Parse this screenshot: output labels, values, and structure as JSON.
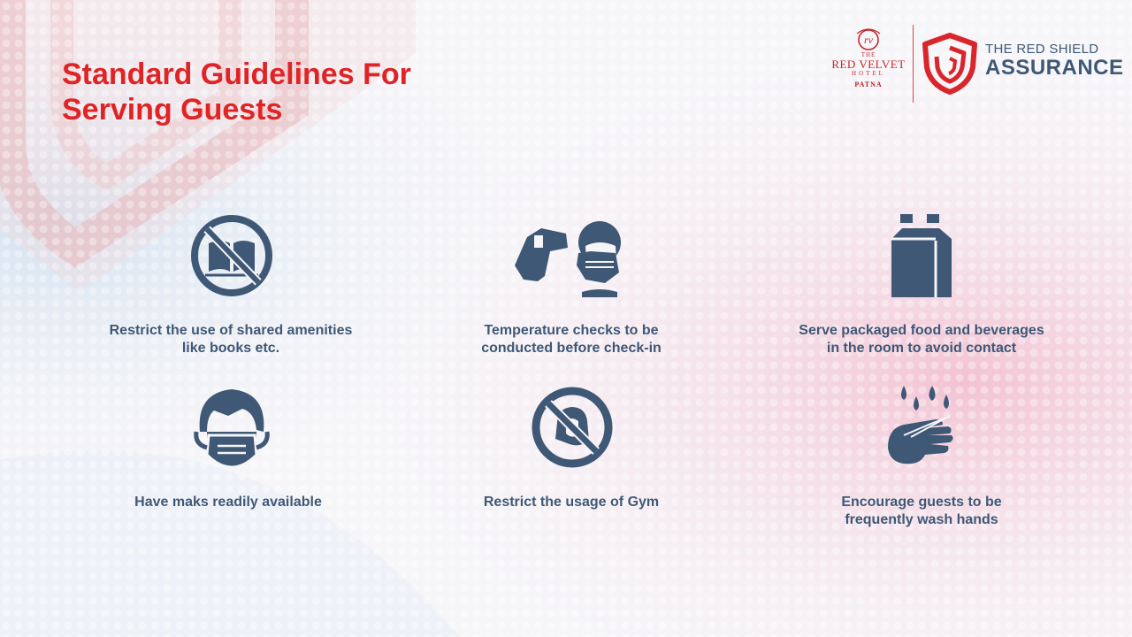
{
  "title": {
    "line1": "Standard Guidelines For",
    "line2": "Serving Guests"
  },
  "logos": {
    "hotel": {
      "the": "THE",
      "name": "RED VELVET",
      "hotel": "HOTEL",
      "city": "PATNA"
    },
    "assurance": {
      "line1": "THE RED SHIELD",
      "line2": "ASSURANCE"
    }
  },
  "guidelines": [
    {
      "icon": "no-books-icon",
      "caption": "Restrict the use of shared amenities\nlike books etc."
    },
    {
      "icon": "thermometer-check-icon",
      "caption": "Temperature checks to be\nconducted before check-in"
    },
    {
      "icon": "packaged-food-icon",
      "caption": "Serve packaged food and beverages\nin the room to avoid contact"
    },
    {
      "icon": "face-mask-icon",
      "caption": "Have maks readily available"
    },
    {
      "icon": "no-gym-icon",
      "caption": "Restrict the usage of Gym"
    },
    {
      "icon": "wash-hands-icon",
      "caption": "Encourage guests to be\nfrequently wash hands"
    }
  ],
  "colors": {
    "title": "#e02426",
    "icon": "#3f5876",
    "brand_red": "#c8262c"
  }
}
